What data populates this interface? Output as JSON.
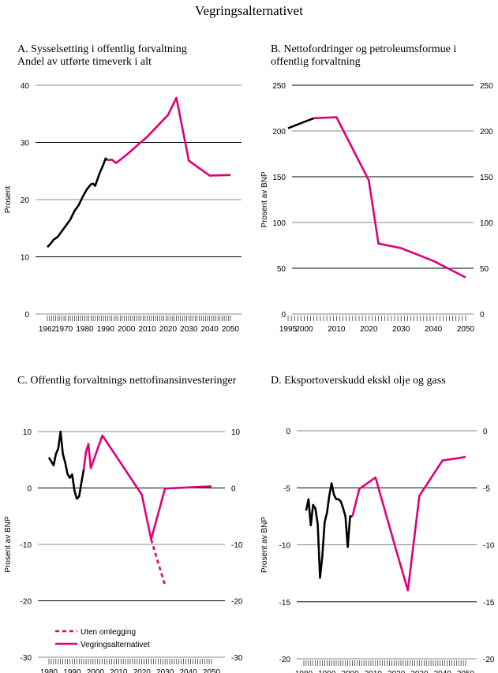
{
  "title": "Vegringsalternativet",
  "colors": {
    "historical": "#000000",
    "projection": "#e0007a"
  },
  "chart_data": [
    {
      "type": "line",
      "title": "A.  Sysselsetting i offentlig forvaltning\nAndel av utførte timeverk i alt",
      "ylabel": "Prosent",
      "ylim": [
        0,
        40
      ],
      "yticks": [
        0,
        10,
        20,
        30,
        40
      ],
      "right_axis": false,
      "xlim": [
        1962,
        2050
      ],
      "xticks": [
        "1962",
        "1970",
        "1980",
        "1990",
        "2000",
        "2010",
        "2020",
        "2030",
        "2040",
        "2050"
      ],
      "grid": true,
      "series": [
        {
          "color": "#000000",
          "style": "solid",
          "x": [
            1962,
            1964,
            1965,
            1967,
            1969,
            1971,
            1973,
            1975,
            1977,
            1979,
            1981,
            1983,
            1984,
            1985,
            1987,
            1989,
            1990,
            1991
          ],
          "y": [
            11.7,
            12.5,
            13,
            13.5,
            14.5,
            15.5,
            16.5,
            18,
            19,
            20.5,
            21.8,
            22.7,
            22.8,
            22.4,
            24.5,
            26.2,
            27.2,
            26.9
          ]
        },
        {
          "color": "#e0007a",
          "style": "solid",
          "x": [
            1991,
            1993,
            1995,
            2000,
            2010,
            2020,
            2024,
            2030,
            2040,
            2050
          ],
          "y": [
            26.9,
            27.0,
            26.4,
            27.8,
            31,
            34.8,
            37.8,
            26.8,
            24.2,
            24.3
          ]
        }
      ]
    },
    {
      "type": "line",
      "title": "B.  Nettofordringer og petroleumsformue i\noffentlig forvaltning",
      "ylabel": "Prosent av BNP",
      "ylim": [
        0,
        250
      ],
      "yticks": [
        0,
        50,
        100,
        150,
        200,
        250
      ],
      "right_axis": true,
      "xlim": [
        1995,
        2050
      ],
      "xticks": [
        "1995",
        "2000",
        "2010",
        "2020",
        "2030",
        "2040",
        "2050"
      ],
      "grid": true,
      "series": [
        {
          "color": "#000000",
          "style": "solid",
          "x": [
            1995,
            2003
          ],
          "y": [
            203,
            214
          ]
        },
        {
          "color": "#e0007a",
          "style": "solid",
          "x": [
            2003,
            2010,
            2020,
            2023,
            2030,
            2040,
            2050
          ],
          "y": [
            214,
            215,
            146,
            77,
            72,
            58,
            40
          ]
        }
      ]
    },
    {
      "type": "line",
      "title": "C.  Offentlig forvaltnings nettofinansinvesteringer",
      "ylabel": "Prosent av BNP",
      "ylim": [
        -30,
        10
      ],
      "yticks": [
        -30,
        -20,
        -10,
        0,
        10
      ],
      "right_axis": true,
      "xlim": [
        1980,
        2050
      ],
      "xticks": [
        "1980",
        "1990",
        "2000",
        "2010",
        "2020",
        "2030",
        "2040",
        "2050"
      ],
      "grid": true,
      "legend_position": "bottom-left",
      "series": [
        {
          "color": "#000000",
          "style": "solid",
          "x": [
            1980,
            1982,
            1983,
            1984,
            1985,
            1986,
            1987,
            1988,
            1989,
            1990,
            1991,
            1992,
            1993,
            1994,
            1995
          ],
          "y": [
            5.4,
            4,
            6,
            7,
            10,
            6,
            4.5,
            2.5,
            1.8,
            2.4,
            -0.5,
            -1.9,
            -1.5,
            1,
            3.3
          ]
        },
        {
          "name": "Vegringsalternativet",
          "color": "#e0007a",
          "style": "solid",
          "x": [
            1995,
            1996,
            1997,
            1998,
            2003,
            2010,
            2020,
            2024,
            2030,
            2040,
            2050
          ],
          "y": [
            3.3,
            6.5,
            7.8,
            3.5,
            9.3,
            5,
            -1.2,
            -9.1,
            -0.1,
            0.1,
            0.3
          ]
        },
        {
          "name": "Uten omlegging",
          "color": "#e0007a",
          "style": "dashed",
          "x": [
            2024,
            2030
          ],
          "y": [
            -9.1,
            -17.3
          ]
        }
      ]
    },
    {
      "type": "line",
      "title": "D.  Eksportoverskudd ekskl olje og gass",
      "ylabel": "Prosent av BNP",
      "ylim": [
        -20,
        0
      ],
      "yticks": [
        -20,
        -15,
        -10,
        -5,
        0
      ],
      "right_axis": true,
      "xlim": [
        1980,
        2050
      ],
      "xticks": [
        "1980",
        "1990",
        "2000",
        "2010",
        "2020",
        "2030",
        "2040",
        "2050"
      ],
      "grid": true,
      "series": [
        {
          "color": "#000000",
          "style": "solid",
          "x": [
            1981,
            1982,
            1983,
            1984,
            1985,
            1986,
            1987,
            1988,
            1989,
            1990,
            1991,
            1992,
            1993,
            1994,
            1995,
            1996,
            1997,
            1998,
            1999,
            2000,
            2001
          ],
          "y": [
            -7,
            -6,
            -8.3,
            -6.5,
            -6.8,
            -8.2,
            -12.9,
            -11,
            -8,
            -7.2,
            -5.7,
            -4.6,
            -5.6,
            -6,
            -6,
            -6.2,
            -6.8,
            -7.5,
            -10.2,
            -7.5,
            -7.5
          ]
        },
        {
          "color": "#e0007a",
          "style": "solid",
          "x": [
            2001,
            2004,
            2011,
            2020,
            2025,
            2030,
            2040,
            2050
          ],
          "y": [
            -7.5,
            -5.1,
            -4.1,
            -10.5,
            -14,
            -5.7,
            -2.6,
            -2.3
          ]
        }
      ]
    }
  ]
}
